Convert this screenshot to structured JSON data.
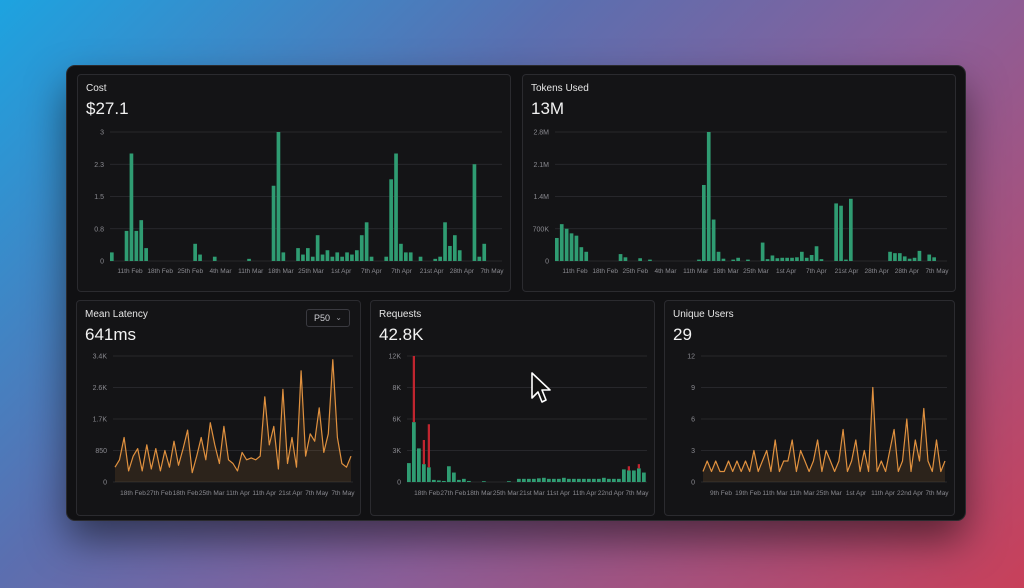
{
  "panels": {
    "cost": {
      "title": "Cost",
      "value": "$27.1"
    },
    "tokens": {
      "title": "Tokens Used",
      "value": "13M"
    },
    "latency": {
      "title": "Mean Latency",
      "value": "641ms",
      "selector": "P50"
    },
    "requests": {
      "title": "Requests",
      "value": "42.8K"
    },
    "users": {
      "title": "Unique Users",
      "value": "29"
    }
  },
  "colors": {
    "green": "#2f9c72",
    "orange": "#e0913f",
    "red": "#c0252f",
    "blue": "#2f6fa0"
  },
  "chart_data": [
    {
      "id": "cost",
      "type": "bar",
      "yticks": [
        "3",
        "2.3",
        "1.5",
        "0.8",
        "0"
      ],
      "ylim": [
        0,
        3
      ],
      "xticks": [
        "11th Feb",
        "18th Feb",
        "25th Feb",
        "4th Mar",
        "11th Mar",
        "18th Mar",
        "25th Mar",
        "1st Apr",
        "7th Apr",
        "7th Apr",
        "21st Apr",
        "28th Apr",
        "7th May"
      ],
      "values": [
        0.2,
        0,
        0,
        0.7,
        2.5,
        0.7,
        0.95,
        0.3,
        0,
        0,
        0,
        0,
        0,
        0,
        0,
        0,
        0,
        0.4,
        0.15,
        0,
        0,
        0.1,
        0,
        0,
        0,
        0,
        0,
        0,
        0.05,
        0,
        0,
        0,
        0,
        1.75,
        3.0,
        0.2,
        0,
        0,
        0.3,
        0.15,
        0.3,
        0.1,
        0.6,
        0.15,
        0.25,
        0.1,
        0.2,
        0.1,
        0.2,
        0.15,
        0.25,
        0.6,
        0.9,
        0.1,
        0,
        0,
        0.1,
        1.9,
        2.5,
        0.4,
        0.2,
        0.2,
        0,
        0.1,
        0,
        0,
        0.05,
        0.1,
        0.9,
        0.35,
        0.6,
        0.25,
        0,
        0,
        2.25,
        0.1,
        0.4,
        0,
        0,
        0
      ]
    },
    {
      "id": "tokens",
      "type": "bar",
      "yticks": [
        "2.8M",
        "2.1M",
        "1.4M",
        "700K",
        "0"
      ],
      "ylim": [
        0,
        2800000
      ],
      "xticks": [
        "11th Feb",
        "18th Feb",
        "25th Feb",
        "4th Mar",
        "11th Mar",
        "18th Mar",
        "25th Mar",
        "1st Apr",
        "7th Apr",
        "21st Apr",
        "28th Apr",
        "28th Apr",
        "7th May"
      ],
      "values": [
        500000,
        800000,
        700000,
        600000,
        550000,
        300000,
        200000,
        0,
        0,
        0,
        0,
        0,
        0,
        150000,
        80000,
        0,
        0,
        60000,
        0,
        30000,
        0,
        0,
        0,
        0,
        0,
        0,
        0,
        0,
        0,
        30000,
        1650000,
        2800000,
        900000,
        200000,
        50000,
        0,
        30000,
        70000,
        0,
        30000,
        0,
        0,
        400000,
        40000,
        120000,
        60000,
        70000,
        70000,
        70000,
        80000,
        200000,
        70000,
        130000,
        320000,
        40000,
        0,
        0,
        1250000,
        1200000,
        30000,
        1350000,
        0,
        0,
        0,
        0,
        0,
        0,
        0,
        200000,
        170000,
        170000,
        100000,
        50000,
        70000,
        220000,
        0,
        140000,
        80000,
        0,
        0
      ]
    },
    {
      "id": "latency",
      "type": "area",
      "yticks": [
        "3.4K",
        "2.6K",
        "1.7K",
        "850",
        "0"
      ],
      "ylim": [
        0,
        3400
      ],
      "xticks": [
        "18th Feb",
        "27th Feb",
        "18th Feb",
        "25th Mar",
        "11th Apr",
        "11th Apr",
        "21st Apr",
        "7th May",
        "7th May"
      ],
      "values": [
        400,
        600,
        1200,
        300,
        700,
        900,
        300,
        1000,
        350,
        900,
        300,
        850,
        400,
        1100,
        450,
        900,
        1400,
        250,
        700,
        1200,
        600,
        1600,
        1000,
        500,
        1500,
        600,
        500,
        300,
        800,
        600,
        650,
        600,
        700,
        2300,
        1000,
        1500,
        350,
        2500,
        500,
        1200,
        400,
        3000,
        700,
        1300,
        1100,
        2000,
        800,
        1300,
        3300,
        1200,
        500,
        400,
        700
      ]
    },
    {
      "id": "requests",
      "type": "bar",
      "yticks": [
        "12K",
        "8K",
        "6K",
        "3K",
        "0"
      ],
      "ylim": [
        0,
        12000
      ],
      "xticks": [
        "18th Feb",
        "27th Feb",
        "18th Mar",
        "25th Mar",
        "21st Mar",
        "11st Apr",
        "11th Apr",
        "22nd Apr",
        "7th May"
      ],
      "values": [
        1800,
        5700,
        3200,
        1700,
        1400,
        200,
        150,
        100,
        1500,
        900,
        200,
        300,
        100,
        0,
        0,
        50,
        0,
        0,
        0,
        0,
        30,
        0,
        300,
        300,
        300,
        300,
        350,
        400,
        300,
        300,
        300,
        400,
        300,
        300,
        300,
        300,
        300,
        300,
        300,
        400,
        300,
        300,
        300,
        1200,
        1100,
        1100,
        1300,
        900
      ],
      "red": [
        0,
        12000,
        0,
        4000,
        5500,
        0,
        0,
        0,
        0,
        0,
        0,
        0,
        0,
        0,
        0,
        0,
        0,
        0,
        0,
        0,
        0,
        0,
        0,
        0,
        0,
        0,
        0,
        0,
        0,
        0,
        0,
        0,
        0,
        0,
        0,
        0,
        0,
        0,
        0,
        0,
        0,
        0,
        0,
        0,
        1500,
        0,
        1700,
        0
      ]
    },
    {
      "id": "users",
      "type": "area",
      "yticks": [
        "12",
        "9",
        "6",
        "3",
        "0"
      ],
      "ylim": [
        0,
        12
      ],
      "xticks": [
        "9th Feb",
        "19th Feb",
        "11th Mar",
        "11th Mar",
        "25th Mar",
        "1st Apr",
        "11th Apr",
        "22nd Apr",
        "7th May"
      ],
      "values": [
        1,
        2,
        1,
        2,
        1,
        1,
        2,
        1,
        2,
        1,
        2,
        1,
        3,
        1,
        2,
        3,
        1,
        4,
        1,
        2,
        2,
        4,
        1,
        3,
        2,
        1,
        2,
        4,
        1,
        3,
        2,
        1,
        2,
        5,
        1,
        2,
        4,
        1,
        3,
        1,
        9,
        1,
        2,
        1,
        3,
        5,
        1,
        2,
        6,
        1,
        4,
        2,
        7,
        2,
        1,
        4,
        1,
        2
      ]
    }
  ]
}
